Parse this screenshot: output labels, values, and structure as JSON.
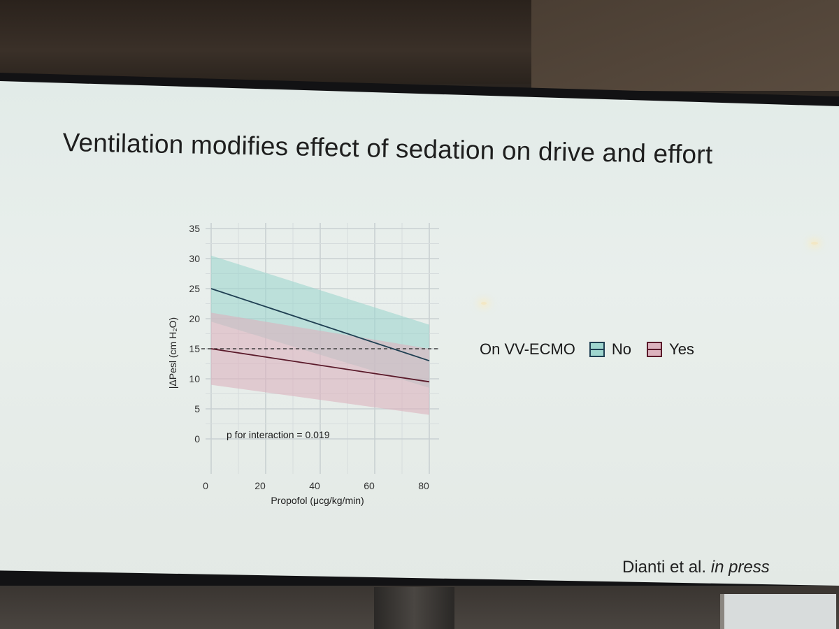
{
  "slide": {
    "title": "Ventilation modifies effect of sedation on drive and effort",
    "citation_authors": "Dianti et al.",
    "citation_status": "in press"
  },
  "chart_data": {
    "type": "line",
    "xlabel": "Propofol (μcg/kg/min)",
    "ylabel": "|ΔPesl (cm H₂O)",
    "xlim": [
      0,
      80
    ],
    "ylim": [
      0,
      35
    ],
    "x_ticks": [
      0,
      20,
      40,
      60,
      80
    ],
    "y_ticks": [
      0,
      5,
      10,
      15,
      20,
      25,
      30,
      35
    ],
    "grid": true,
    "reference_line_y": 15,
    "annotation": "p for interaction = 0.019",
    "legend_title": "On VV-ECMO",
    "legend_position": "right",
    "series": [
      {
        "name": "No",
        "color": "#1f3f52",
        "fill": "#9fd6cf",
        "x": [
          0,
          80
        ],
        "y": [
          25,
          13
        ],
        "lower": [
          19.5,
          8.5
        ],
        "upper": [
          30.5,
          19
        ]
      },
      {
        "name": "Yes",
        "color": "#5a1a2a",
        "fill": "#dcb3be",
        "x": [
          0,
          80
        ],
        "y": [
          15,
          9.5
        ],
        "lower": [
          9,
          4
        ],
        "upper": [
          21,
          15
        ]
      }
    ]
  }
}
